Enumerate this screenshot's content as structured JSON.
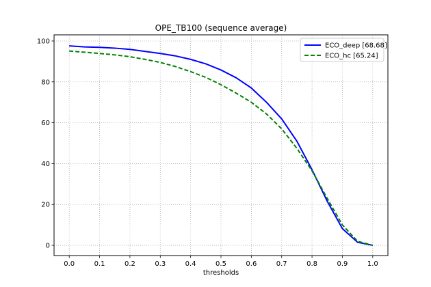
{
  "chart_data": {
    "type": "line",
    "title": "OPE_TB100 (sequence average)",
    "xlabel": "thresholds",
    "ylabel": "",
    "xlim": [
      -0.05,
      1.05
    ],
    "ylim": [
      -5,
      103
    ],
    "xticks": [
      "0.0",
      "0.1",
      "0.2",
      "0.3",
      "0.4",
      "0.5",
      "0.6",
      "0.7",
      "0.8",
      "0.9",
      "1.0"
    ],
    "yticks": [
      "0",
      "20",
      "40",
      "60",
      "80",
      "100"
    ],
    "grid": true,
    "legend_position": "top-right",
    "x": [
      0.0,
      0.05,
      0.1,
      0.15,
      0.2,
      0.25,
      0.3,
      0.35,
      0.4,
      0.45,
      0.5,
      0.55,
      0.6,
      0.65,
      0.7,
      0.75,
      0.8,
      0.85,
      0.9,
      0.95,
      1.0
    ],
    "series": [
      {
        "name": "ECO_deep [68.68]",
        "color": "#0000ff",
        "style": "solid",
        "values": [
          97.6,
          97.1,
          96.9,
          96.5,
          95.9,
          94.9,
          93.9,
          92.7,
          91.0,
          88.8,
          85.8,
          82.0,
          77.0,
          70.0,
          61.9,
          51.0,
          37.0,
          21.6,
          8.2,
          1.5,
          0.0
        ]
      },
      {
        "name": "ECO_hc [65.24]",
        "color": "#008000",
        "style": "dashed",
        "values": [
          95.1,
          94.5,
          93.9,
          93.2,
          92.3,
          91.0,
          89.5,
          87.5,
          85.0,
          82.2,
          78.6,
          74.5,
          70.0,
          64.3,
          57.0,
          47.5,
          36.5,
          23.0,
          10.0,
          2.0,
          0.0
        ]
      }
    ]
  }
}
